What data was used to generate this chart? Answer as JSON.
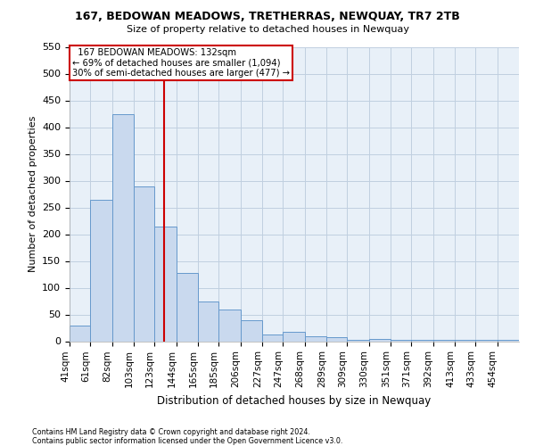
{
  "title": "167, BEDOWAN MEADOWS, TRETHERRAS, NEWQUAY, TR7 2TB",
  "subtitle": "Size of property relative to detached houses in Newquay",
  "xlabel": "Distribution of detached houses by size in Newquay",
  "ylabel": "Number of detached properties",
  "bin_labels": [
    "41sqm",
    "61sqm",
    "82sqm",
    "103sqm",
    "123sqm",
    "144sqm",
    "165sqm",
    "185sqm",
    "206sqm",
    "227sqm",
    "247sqm",
    "268sqm",
    "289sqm",
    "309sqm",
    "330sqm",
    "351sqm",
    "371sqm",
    "392sqm",
    "413sqm",
    "433sqm",
    "454sqm"
  ],
  "bar_heights": [
    30,
    265,
    425,
    290,
    215,
    128,
    75,
    60,
    40,
    13,
    17,
    10,
    8,
    2,
    5,
    3,
    2,
    3,
    2,
    3,
    2
  ],
  "bar_left_edges": [
    41,
    61,
    82,
    103,
    123,
    144,
    165,
    185,
    206,
    227,
    247,
    268,
    289,
    309,
    330,
    351,
    371,
    392,
    413,
    433,
    454
  ],
  "bar_widths": [
    20,
    21,
    21,
    20,
    21,
    21,
    20,
    21,
    21,
    20,
    21,
    21,
    20,
    21,
    21,
    20,
    21,
    21,
    20,
    21,
    21
  ],
  "bar_color": "#c9d9ee",
  "bar_edge_color": "#6699cc",
  "property_size": 132,
  "vline_color": "#cc0000",
  "annotation_box_color": "#cc0000",
  "annotation_text_line1": "  167 BEDOWAN MEADOWS: 132sqm  ",
  "annotation_text_line2": "← 69% of detached houses are smaller (1,094)",
  "annotation_text_line3": "30% of semi-detached houses are larger (477) →",
  "ylim": [
    0,
    550
  ],
  "yticks": [
    0,
    50,
    100,
    150,
    200,
    250,
    300,
    350,
    400,
    450,
    500,
    550
  ],
  "footer_line1": "Contains HM Land Registry data © Crown copyright and database right 2024.",
  "footer_line2": "Contains public sector information licensed under the Open Government Licence v3.0.",
  "bg_color": "#ffffff",
  "plot_bg_color": "#e8f0f8",
  "grid_color": "#c0cfe0"
}
